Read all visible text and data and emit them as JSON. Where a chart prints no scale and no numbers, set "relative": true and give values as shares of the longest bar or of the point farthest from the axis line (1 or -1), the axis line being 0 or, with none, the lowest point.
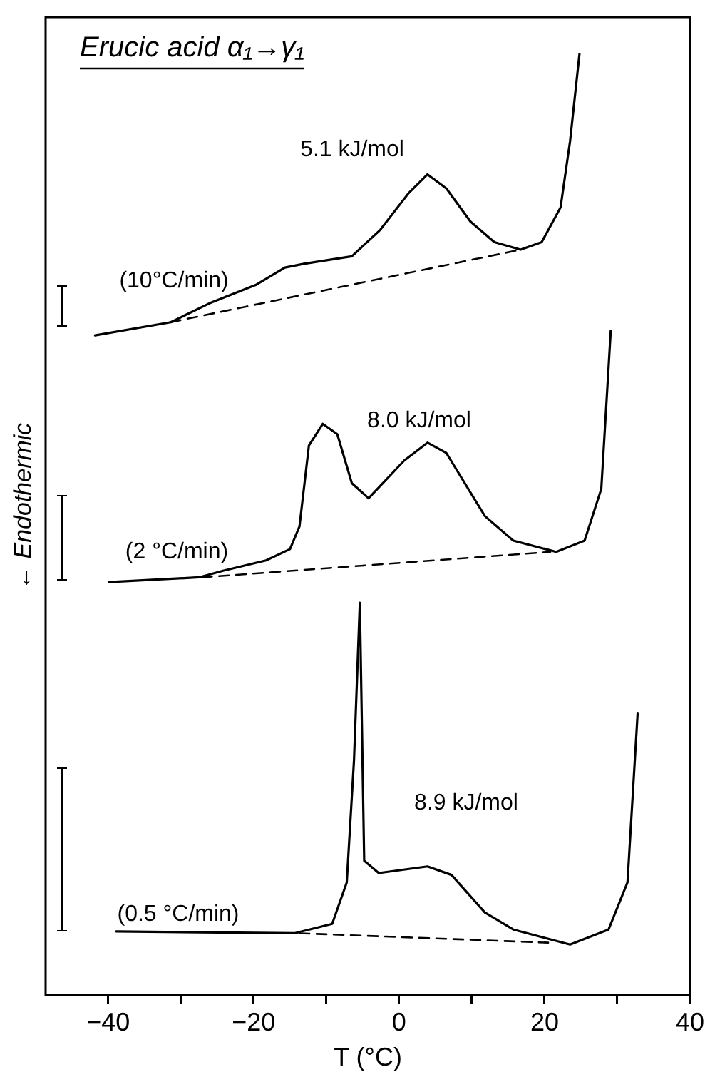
{
  "chart_data": {
    "type": "line",
    "title": "Erucic acid α₁→γ₁",
    "xlabel": "T (°C)",
    "ylabel": "← Endothermic",
    "relative": true,
    "legend": false,
    "grid": false,
    "marker": "none",
    "line_style": "solid",
    "xlim": [
      -48.6,
      40
    ],
    "xticks": [
      -40,
      {
        "value": -30,
        "label": null
      },
      -20,
      {
        "value": -10,
        "label": null
      },
      0,
      {
        "value": 10,
        "label": null
      },
      20,
      {
        "value": 30,
        "label": null
      },
      40
    ],
    "series": [
      {
        "color": "#000000",
        "x": [
          -41.8,
          -31.4,
          -26.1,
          -19.6,
          -15.7,
          -13.1,
          -6.5,
          -2.6,
          1.3,
          3.9,
          6.5,
          9.8,
          13.1,
          16.7,
          19.6,
          22.2,
          23.5,
          24.8
        ],
        "values": [
          0.701,
          0.715,
          0.735,
          0.755,
          0.773,
          0.777,
          0.785,
          0.813,
          0.852,
          0.872,
          0.857,
          0.822,
          0.8,
          0.792,
          0.8,
          0.837,
          0.907,
          1.0
        ]
      },
      {
        "color": "#000000",
        "line_style": "dashed",
        "x": [
          -31.4,
          16.7
        ],
        "values": [
          0.715,
          0.792
        ]
      },
      {
        "color": "#000000",
        "x": [
          -39.9,
          -27.5,
          -24.2,
          -18.3,
          -15.0,
          -13.7,
          -12.4,
          -10.5,
          -8.5,
          -6.5,
          -4.2,
          0.7,
          3.9,
          6.5,
          11.8,
          15.7,
          21.6,
          25.5,
          27.8,
          29.1
        ],
        "values": [
          0.439,
          0.444,
          0.451,
          0.462,
          0.474,
          0.498,
          0.584,
          0.607,
          0.596,
          0.544,
          0.528,
          0.568,
          0.587,
          0.576,
          0.509,
          0.483,
          0.471,
          0.483,
          0.538,
          0.706
        ]
      },
      {
        "color": "#000000",
        "line_style": "dashed",
        "x": [
          -27.1,
          20.8
        ],
        "values": [
          0.444,
          0.471
        ]
      },
      {
        "color": "#000000",
        "x": [
          -38.9,
          -14.4,
          -9.2,
          -7.2,
          -6.2,
          -5.4,
          -4.8,
          -2.8,
          3.9,
          7.2,
          11.8,
          15.7,
          23.5,
          28.8,
          31.4,
          32.8
        ],
        "values": [
          0.068,
          0.066,
          0.076,
          0.12,
          0.25,
          0.417,
          0.143,
          0.13,
          0.137,
          0.128,
          0.088,
          0.07,
          0.054,
          0.07,
          0.12,
          0.3
        ]
      },
      {
        "color": "#000000",
        "line_style": "dashed",
        "x": [
          -13.7,
          20.5
        ],
        "values": [
          0.066,
          0.056
        ]
      }
    ],
    "annotations": [
      "5.1 kJ/mol",
      "(10°C/min)",
      "8.0 kJ/mol",
      "(2 °C/min)",
      "8.9 kJ/mol",
      "(0.5 °C/min)"
    ]
  }
}
